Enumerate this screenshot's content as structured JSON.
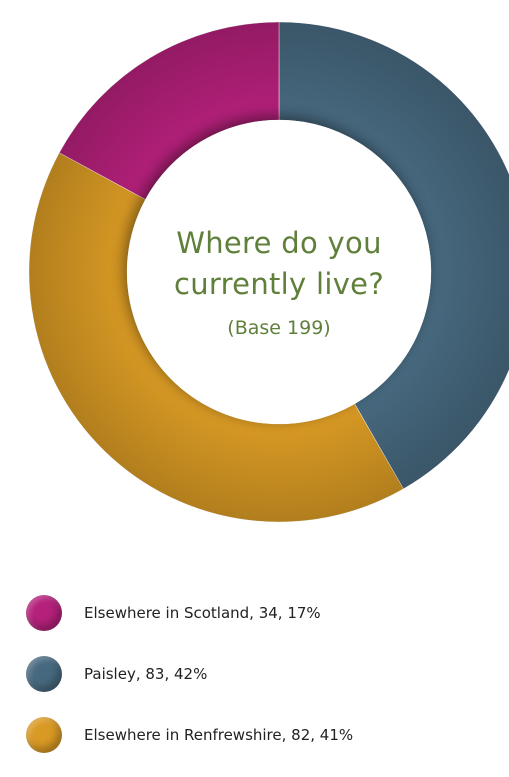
{
  "chart_data": {
    "type": "pie",
    "donut": true,
    "title": "Where do you currently live?",
    "title_lines": [
      "Where do you",
      "currently live?"
    ],
    "subtitle": "(Base 199)",
    "total": 199,
    "slices": [
      {
        "label": "Paisley",
        "value": 83,
        "percent": 42,
        "color": "#47697f",
        "legend_text": "Paisley, 83, 42%"
      },
      {
        "label": "Elsewhere in Renfrewshire",
        "value": 82,
        "percent": 41,
        "color": "#d99a24",
        "legend_text": "Elsewhere in Renfrewshire, 82, 41%"
      },
      {
        "label": "Elsewhere in Scotland",
        "value": 34,
        "percent": 17,
        "color": "#b4207a",
        "legend_text": "Elsewhere in Scotland, 34, 17%"
      }
    ],
    "legend_order": [
      2,
      0,
      1
    ],
    "legend": "bottom-left"
  }
}
